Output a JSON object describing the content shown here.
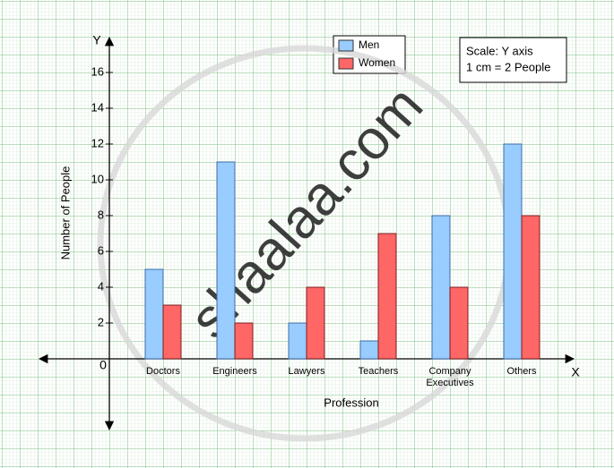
{
  "chart_data": {
    "type": "bar",
    "categories": [
      "Doctors",
      "Engineers",
      "Lawyers",
      "Teachers",
      "Company Executives",
      "Others"
    ],
    "series": [
      {
        "name": "Men",
        "color": "#99ccff",
        "values": [
          5,
          11,
          2,
          1,
          8,
          12
        ]
      },
      {
        "name": "Women",
        "color": "#ff6666",
        "values": [
          3,
          2,
          4,
          7,
          4,
          8
        ]
      }
    ],
    "ylim": [
      -4,
      18
    ],
    "yticks": [
      2,
      4,
      6,
      8,
      10,
      12,
      14,
      16
    ],
    "y_label": "Number of People",
    "x_label": "Profession",
    "y_axis_letter": "Y",
    "x_axis_letter": "X",
    "origin_label": "0",
    "note": [
      "Scale: Y axis",
      "1 cm = 2 People"
    ],
    "watermark": "shaalaa.com",
    "grid": true
  }
}
